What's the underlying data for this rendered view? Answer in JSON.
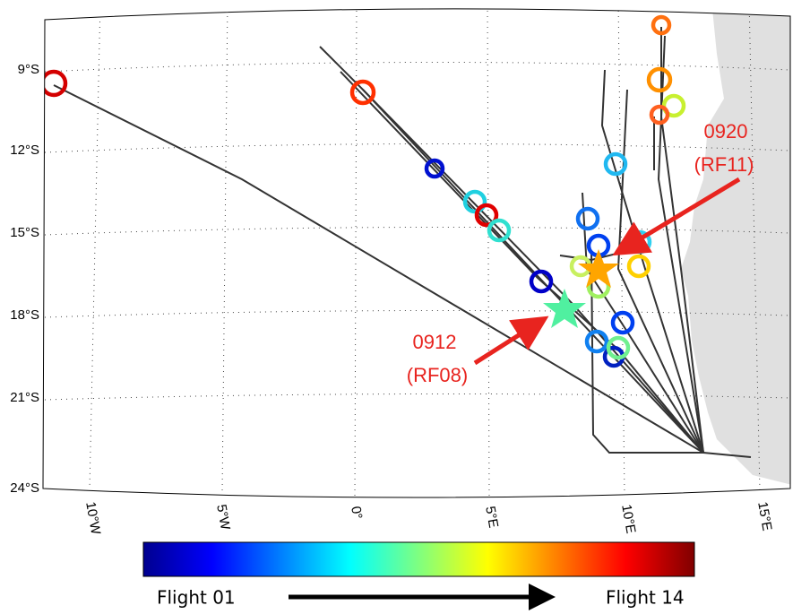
{
  "map": {
    "lat_labels": [
      "9°S",
      "12°S",
      "15°S",
      "18°S",
      "21°S",
      "24°S"
    ],
    "lon_labels": [
      "10°W",
      "5°W",
      "0°",
      "5°E",
      "10°E",
      "15°E"
    ],
    "annotations": [
      {
        "code": "0920",
        "flight": "(RF11)"
      },
      {
        "code": "0912",
        "flight": "(RF08)"
      }
    ],
    "colorbar": {
      "start_label": "Flight 01",
      "end_label": "Flight 14"
    }
  }
}
